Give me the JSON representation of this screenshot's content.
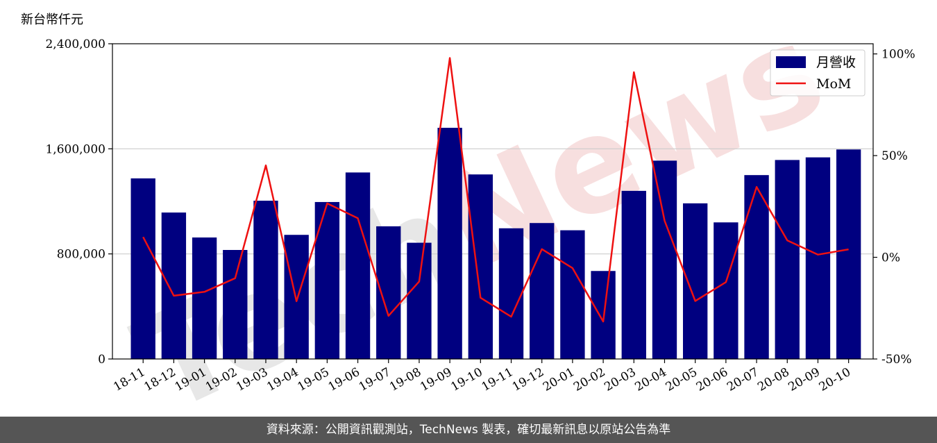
{
  "chart_data": {
    "type": "bar+line",
    "y_unit_label": "新台幣仟元",
    "categories": [
      "18-11",
      "18-12",
      "19-01",
      "19-02",
      "19-03",
      "19-04",
      "19-05",
      "19-06",
      "19-07",
      "19-08",
      "19-09",
      "19-10",
      "19-11",
      "19-12",
      "20-01",
      "20-02",
      "20-03",
      "20-04",
      "20-05",
      "20-06",
      "20-07",
      "20-08",
      "20-09",
      "20-10"
    ],
    "series": [
      {
        "name": "月營收",
        "type": "bar",
        "axis": "left",
        "color": "#000080",
        "values": [
          1375000,
          1115000,
          925000,
          830000,
          1205000,
          945000,
          1195000,
          1420000,
          1010000,
          885000,
          1760000,
          1405000,
          995000,
          1035000,
          980000,
          670000,
          1280000,
          1510000,
          1185000,
          1040000,
          1400000,
          1515000,
          1535000,
          1595000
        ]
      },
      {
        "name": "MoM",
        "type": "line",
        "axis": "right",
        "color": "#ee1111",
        "values": [
          10,
          -18.9,
          -17.0,
          -10.3,
          45.2,
          -21.6,
          26.5,
          19.2,
          -28.8,
          -11.9,
          98.0,
          -19.9,
          -29.2,
          4.0,
          -5.3,
          -31.6,
          91.0,
          18.0,
          -21.5,
          -12.2,
          34.6,
          8.3,
          1.3,
          3.9
        ]
      }
    ],
    "y_left": {
      "lim": [
        0,
        2400000
      ],
      "ticks": [
        0,
        800000,
        1600000,
        2400000
      ],
      "tick_labels": [
        "0",
        "800,000",
        "1,600,000",
        "2,400,000"
      ]
    },
    "y_right": {
      "lim": [
        -50,
        105
      ],
      "ticks": [
        -50,
        0,
        50,
        100
      ],
      "tick_labels": [
        "-50%",
        "0%",
        "50%",
        "100%"
      ]
    },
    "grid": "horizontal",
    "legend": {
      "position": "top-right",
      "entries": [
        "月營收",
        "MoM"
      ]
    }
  },
  "watermark": {
    "text": "TechNews"
  },
  "footer": {
    "text": "資料來源：公開資訊觀測站，TechNews 製表，確切最新訊息以原站公告為準"
  }
}
